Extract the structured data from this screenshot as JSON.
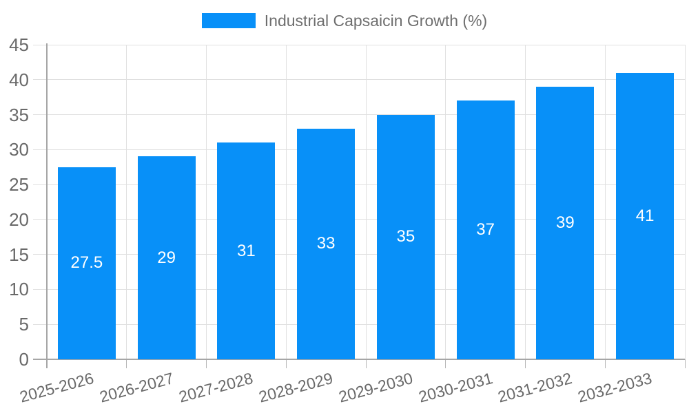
{
  "legend": {
    "label": "Industrial Capsaicin Growth (%)",
    "swatch_color": "#0890f8"
  },
  "chart_data": {
    "type": "bar",
    "title": "",
    "categories": [
      "2025-2026",
      "2026-2027",
      "2027-2028",
      "2028-2029",
      "2029-2030",
      "2030-2031",
      "2031-2032",
      "2032-2033"
    ],
    "series": [
      {
        "name": "Industrial Capsaicin Growth (%)",
        "values": [
          27.5,
          29,
          31,
          33,
          35,
          37,
          39,
          41
        ],
        "color": "#0890f8"
      }
    ],
    "value_labels": [
      "27.5",
      "29",
      "31",
      "33",
      "35",
      "37",
      "39",
      "41"
    ],
    "xlabel": "",
    "ylabel": "",
    "ylim": [
      0,
      45
    ],
    "ytick_step": 5,
    "y_tick_labels": [
      "0",
      "5",
      "10",
      "15",
      "20",
      "25",
      "30",
      "35",
      "40",
      "45"
    ],
    "grid": true,
    "legend_position": "top-center",
    "x_tick_rotation_deg": -15
  },
  "style": {
    "bar_color": "#0890f8",
    "value_label_color": "#ffffff",
    "grid_color": "#e0e0e0",
    "axis_color": "#a6a6a6",
    "tick_color": "#b5b5b5",
    "tick_label_color": "#696969",
    "legend_text_color": "#6e6e6e",
    "background": "#ffffff"
  }
}
